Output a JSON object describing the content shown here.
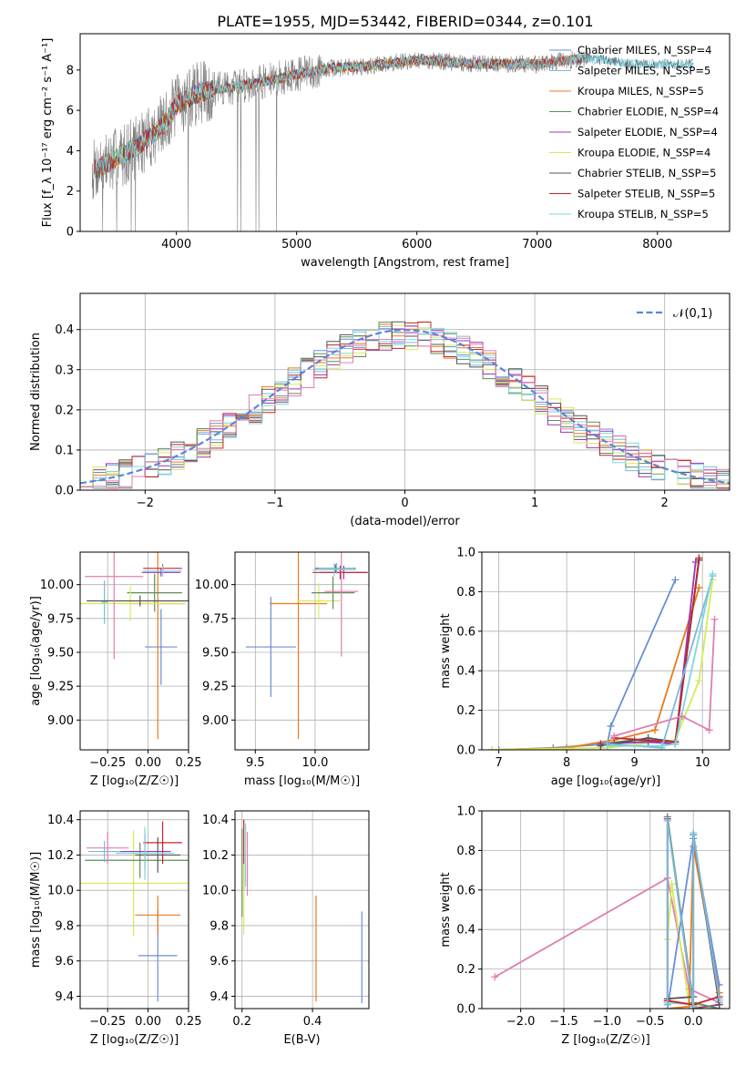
{
  "figure_title": "PLATE=1955, MJD=53442, FIBERID=0344, z=0.101",
  "colors": {
    "chabrier_miles": "#6a8fd6",
    "salpeter_miles": "#7fb8d8",
    "kroupa_miles": "#ea7a1d",
    "chabrier_elodie": "#5e8e57",
    "salpeter_elodie": "#9b35b5",
    "kroupa_elodie": "#d6ea5a",
    "chabrier_stelib": "#555555",
    "salpeter_stelib": "#c2262c",
    "kroupa_stelib": "#80d6de",
    "pink": "#e07fb0",
    "observed": "#808080",
    "gaussian": "#5b86d8",
    "grid": "#b0b0b0"
  },
  "chart_data": [
    {
      "id": "spectrum",
      "type": "line",
      "title": "PLATE=1955, MJD=53442, FIBERID=0344, z=0.101",
      "xlabel": "wavelength [Angstrom, rest frame]",
      "ylabel": "Flux [f_λ 10⁻¹⁷ erg cm⁻² s⁻¹ A⁻¹]",
      "xlim": [
        3200,
        8600
      ],
      "ylim": [
        0,
        9.8
      ],
      "xticks": [
        4000,
        5000,
        6000,
        7000,
        8000
      ],
      "yticks": [
        0,
        2,
        4,
        6,
        8
      ],
      "grid": false,
      "legend_position": "top-right",
      "legend": [
        "Chabrier MILES, N_SSP=4",
        "Salpeter MILES, N_SSP=5",
        "Kroupa MILES, N_SSP=5",
        "Chabrier ELODIE, N_SSP=4",
        "Salpeter ELODIE, N_SSP=4",
        "Kroupa ELODIE, N_SSP=4",
        "Chabrier STELIB, N_SSP=5",
        "Salpeter STELIB, N_SSP=5",
        "Kroupa STELIB, N_SSP=5"
      ],
      "continuum_x": [
        3300,
        3500,
        3700,
        3900,
        4000,
        4200,
        4500,
        4800,
        5000,
        5300,
        5600,
        6000,
        6500,
        7000,
        7400,
        7800,
        8300
      ],
      "continuum_y": [
        3.0,
        3.6,
        4.3,
        5.3,
        6.3,
        6.9,
        7.2,
        7.5,
        7.8,
        8.1,
        8.2,
        8.5,
        8.3,
        8.3,
        8.6,
        8.3,
        8.3
      ]
    },
    {
      "id": "residuals",
      "type": "histogram",
      "xlabel": "(data-model)/error",
      "ylabel": "Normed distribution",
      "xlim": [
        -2.5,
        2.5
      ],
      "ylim": [
        0,
        0.49
      ],
      "xticks": [
        -2,
        -1,
        0,
        1,
        2
      ],
      "yticks": [
        0.0,
        0.1,
        0.2,
        0.3,
        0.4
      ],
      "grid": true,
      "legend_position": "top-right",
      "legend": [
        "𝒩(0,1)"
      ],
      "bin_width": 0.1
    },
    {
      "id": "age_vs_z",
      "type": "errorbar",
      "xlabel": "Z [log₁₀(Z/Z☉)]",
      "ylabel": "age  [log₁₀(age/yr)]",
      "xlim": [
        -0.42,
        0.25
      ],
      "ylim": [
        8.78,
        10.24
      ],
      "xticks": [
        -0.25,
        0.0,
        0.25
      ],
      "yticks": [
        9.0,
        9.25,
        9.5,
        9.75,
        10.0
      ],
      "grid": true,
      "points": [
        {
          "c": "chabrier_miles",
          "x": 0.08,
          "xerr": 0.1,
          "y": 9.54,
          "yerr": 0.28
        },
        {
          "c": "salpeter_miles",
          "x": -0.27,
          "xerr": 0.02,
          "y": 9.87,
          "yerr": 0.16
        },
        {
          "c": "kroupa_miles",
          "x": 0.06,
          "xerr": 0.17,
          "y": 9.86,
          "yerr": 1.0
        },
        {
          "c": "chabrier_elodie",
          "x": 0.04,
          "xerr": 0.17,
          "y": 9.94,
          "yerr": 0.14
        },
        {
          "c": "salpeter_elodie",
          "x": 0.08,
          "xerr": 0.12,
          "y": 10.09,
          "yerr": 0.03
        },
        {
          "c": "kroupa_elodie",
          "x": -0.11,
          "xerr": 0.34,
          "y": 9.86,
          "yerr": 0.13
        },
        {
          "c": "chabrier_stelib",
          "x": -0.05,
          "xerr": 0.33,
          "y": 9.88,
          "yerr": 0.04
        },
        {
          "c": "salpeter_stelib",
          "x": 0.09,
          "xerr": 0.12,
          "y": 10.12,
          "yerr": 0.03
        },
        {
          "c": "kroupa_stelib",
          "x": 0.09,
          "xerr": 0.12,
          "y": 10.1,
          "yerr": 0.04
        },
        {
          "c": "pink",
          "x": -0.21,
          "xerr": 0.18,
          "y": 10.06,
          "yerr": 0.61
        }
      ]
    },
    {
      "id": "age_vs_mass",
      "type": "errorbar",
      "xlabel": "mass [log₁₀(M/M☉)]",
      "ylabel": "",
      "xlim": [
        9.33,
        10.45
      ],
      "ylim": [
        8.78,
        10.24
      ],
      "xticks": [
        9.5,
        10.0
      ],
      "yticks": [
        9.0,
        9.25,
        9.5,
        9.75,
        10.0
      ],
      "grid": true,
      "points": [
        {
          "c": "chabrier_miles",
          "x": 9.63,
          "xerr": 0.21,
          "y": 9.54,
          "yerr": 0.37
        },
        {
          "c": "kroupa_miles",
          "x": 9.86,
          "xerr": 0.24,
          "y": 9.86,
          "yerr": 1.0
        },
        {
          "c": "kroupa_elodie",
          "x": 10.03,
          "xerr": 0.18,
          "y": 9.88,
          "yerr": 0.13
        },
        {
          "c": "chabrier_elodie",
          "x": 10.15,
          "xerr": 0.18,
          "y": 9.94,
          "yerr": 0.12
        },
        {
          "c": "chabrier_stelib",
          "x": 10.17,
          "xerr": 0.17,
          "y": 10.12,
          "yerr": 0.03
        },
        {
          "c": "salpeter_elodie",
          "x": 10.24,
          "xerr": 0.2,
          "y": 10.09,
          "yerr": 0.05
        },
        {
          "c": "salpeter_stelib",
          "x": 10.21,
          "xerr": 0.23,
          "y": 10.09,
          "yerr": 0.05
        },
        {
          "c": "kroupa_stelib",
          "x": 10.16,
          "xerr": 0.18,
          "y": 10.11,
          "yerr": 0.05
        },
        {
          "c": "pink",
          "x": 10.22,
          "xerr": 0.14,
          "y": 9.95,
          "yerr": 0.48
        },
        {
          "c": "salpeter_miles",
          "x": 10.18,
          "xerr": 0.15,
          "y": 10.12,
          "yerr": 0.04
        }
      ]
    },
    {
      "id": "mass_weight_vs_age",
      "type": "line",
      "xlabel": "age  [log₁₀(age/yr)]",
      "ylabel": "mass weight",
      "xlim": [
        6.75,
        10.4
      ],
      "ylim": [
        0,
        1.0
      ],
      "xticks": [
        7,
        8,
        9,
        10
      ],
      "yticks": [
        0.0,
        0.2,
        0.4,
        0.6,
        0.8,
        1.0
      ],
      "grid": true,
      "series": [
        {
          "c": "chabrier_miles",
          "x": [
            7.0,
            7.8,
            8.6,
            8.65,
            9.6
          ],
          "y": [
            0.0,
            0.01,
            0.03,
            0.12,
            0.86
          ]
        },
        {
          "c": "kroupa_miles",
          "x": [
            6.9,
            8.0,
            8.7,
            9.3,
            9.95
          ],
          "y": [
            0.0,
            0.01,
            0.05,
            0.1,
            0.82
          ]
        },
        {
          "c": "kroupa_elodie",
          "x": [
            6.9,
            8.6,
            9.6,
            9.95,
            10.15
          ],
          "y": [
            0.0,
            0.01,
            0.05,
            0.35,
            0.86
          ]
        },
        {
          "c": "chabrier_elodie",
          "x": [
            8.5,
            9.0,
            9.6,
            9.95
          ],
          "y": [
            0.03,
            0.05,
            0.03,
            0.97
          ]
        },
        {
          "c": "salpeter_elodie",
          "x": [
            8.5,
            9.2,
            9.6,
            9.9
          ],
          "y": [
            0.03,
            0.04,
            0.03,
            0.95
          ]
        },
        {
          "c": "chabrier_stelib",
          "x": [
            8.5,
            9.2,
            9.6,
            9.95
          ],
          "y": [
            0.02,
            0.06,
            0.04,
            0.96
          ]
        },
        {
          "c": "salpeter_stelib",
          "x": [
            8.7,
            9.6,
            9.95
          ],
          "y": [
            0.06,
            0.04,
            0.97
          ]
        },
        {
          "c": "salpeter_miles",
          "x": [
            8.6,
            9.4,
            10.15
          ],
          "y": [
            0.03,
            0.01,
            0.88
          ]
        },
        {
          "c": "kroupa_stelib",
          "x": [
            8.6,
            9.4,
            9.6,
            10.15
          ],
          "y": [
            0.02,
            0.02,
            0.03,
            0.89
          ]
        },
        {
          "c": "pink",
          "x": [
            8.7,
            9.7,
            10.1,
            10.18
          ],
          "y": [
            0.07,
            0.17,
            0.1,
            0.66
          ]
        }
      ]
    },
    {
      "id": "mass_vs_z",
      "type": "errorbar",
      "xlabel": "Z [log₁₀(Z/Z☉)]",
      "ylabel": "mass [log₁₀(M/M☉)]",
      "xlim": [
        -0.42,
        0.25
      ],
      "ylim": [
        9.33,
        10.45
      ],
      "xticks": [
        -0.25,
        0.0,
        0.25
      ],
      "yticks": [
        9.4,
        9.6,
        9.8,
        10.0,
        10.2,
        10.4
      ],
      "grid": true,
      "points": [
        {
          "c": "chabrier_miles",
          "x": 0.06,
          "xerr": 0.12,
          "y": 9.63,
          "yerr": 0.26
        },
        {
          "c": "kroupa_miles",
          "x": 0.06,
          "xerr": 0.14,
          "y": 9.86,
          "yerr": 0.11
        },
        {
          "c": "kroupa_elodie",
          "x": -0.09,
          "xerr": 0.34,
          "y": 10.04,
          "yerr": 0.3
        },
        {
          "c": "chabrier_elodie",
          "x": -0.05,
          "xerr": 0.34,
          "y": 10.17,
          "yerr": 0.1
        },
        {
          "c": "salpeter_elodie",
          "x": -0.02,
          "xerr": 0.16,
          "y": 10.22,
          "yerr": 0.1
        },
        {
          "c": "chabrier_stelib",
          "x": 0.06,
          "xerr": 0.14,
          "y": 10.2,
          "yerr": 0.1
        },
        {
          "c": "salpeter_stelib",
          "x": 0.09,
          "xerr": 0.12,
          "y": 10.27,
          "yerr": 0.12
        },
        {
          "c": "kroupa_stelib",
          "x": -0.02,
          "xerr": 0.18,
          "y": 10.21,
          "yerr": 0.15
        },
        {
          "c": "pink",
          "x": -0.25,
          "xerr": 0.13,
          "y": 10.24,
          "yerr": 0.09
        },
        {
          "c": "salpeter_miles",
          "x": -0.27,
          "xerr": 0.1,
          "y": 10.22,
          "yerr": 0.06
        }
      ]
    },
    {
      "id": "mass_vs_ebv",
      "type": "errorbar",
      "xlabel": "E(B-V)",
      "ylabel": "",
      "xlim": [
        0.18,
        0.56
      ],
      "ylim": [
        9.33,
        10.45
      ],
      "xticks": [
        0.2,
        0.4
      ],
      "yticks": [
        9.4,
        9.6,
        9.8,
        10.0,
        10.2,
        10.4
      ],
      "grid": true,
      "points": [
        {
          "c": "chabrier_miles",
          "x": 0.54,
          "y": 9.62,
          "yerr": 0.26
        },
        {
          "c": "kroupa_miles",
          "x": 0.41,
          "y": 9.67,
          "yerr": 0.3
        },
        {
          "c": "pink",
          "x": 0.215,
          "y": 10.15,
          "yerr": 0.18
        },
        {
          "c": "salpeter_stelib",
          "x": 0.205,
          "y": 10.2,
          "yerr": 0.2
        },
        {
          "c": "kroupa_elodie",
          "x": 0.205,
          "y": 9.95,
          "yerr": 0.2
        },
        {
          "c": "chabrier_elodie",
          "x": 0.2,
          "y": 10.1,
          "yerr": 0.25
        },
        {
          "c": "kroupa_stelib",
          "x": 0.21,
          "y": 10.2,
          "yerr": 0.18
        }
      ]
    },
    {
      "id": "mass_weight_vs_z",
      "type": "line",
      "xlabel": "Z [log₁₀(Z/Z☉)]",
      "ylabel": "mass weight",
      "xlim": [
        -2.45,
        0.42
      ],
      "ylim": [
        0,
        1.0
      ],
      "xticks": [
        -2.0,
        -1.5,
        -1.0,
        -0.5,
        0.0
      ],
      "yticks": [
        0.0,
        0.2,
        0.4,
        0.6,
        0.8,
        1.0
      ],
      "grid": true,
      "series": [
        {
          "c": "pink",
          "x": [
            -2.3,
            -0.3,
            -0.05,
            0.3
          ],
          "y": [
            0.16,
            0.66,
            0.1,
            0.03
          ]
        },
        {
          "c": "kroupa_elodie",
          "x": [
            -0.3,
            -0.25,
            -0.05,
            0.3
          ],
          "y": [
            0.35,
            0.63,
            0.02,
            0.0
          ]
        },
        {
          "c": "salpeter_elodie",
          "x": [
            -0.3,
            -0.3,
            0.0,
            0.3
          ],
          "y": [
            0.03,
            0.96,
            0.0,
            0.02
          ]
        },
        {
          "c": "chabrier_elodie",
          "x": [
            -0.3,
            -0.3,
            0.0,
            0.3
          ],
          "y": [
            0.02,
            0.97,
            0.03,
            0.0
          ]
        },
        {
          "c": "kroupa_miles",
          "x": [
            -0.3,
            -0.05,
            0.0,
            0.3
          ],
          "y": [
            0.0,
            0.01,
            0.82,
            0.08
          ]
        },
        {
          "c": "chabrier_miles",
          "x": [
            -0.3,
            0.0,
            0.3
          ],
          "y": [
            0.0,
            0.86,
            0.12
          ]
        },
        {
          "c": "kroupa_stelib",
          "x": [
            -0.3,
            0.0,
            0.0,
            0.3
          ],
          "y": [
            0.03,
            0.02,
            0.89,
            0.04
          ]
        },
        {
          "c": "chabrier_stelib",
          "x": [
            -0.3,
            0.0,
            0.0,
            0.3
          ],
          "y": [
            0.05,
            0.06,
            0.88,
            0.02
          ]
        },
        {
          "c": "salpeter_stelib",
          "x": [
            -0.3,
            0.0,
            0.3
          ],
          "y": [
            0.04,
            0.02,
            0.06
          ]
        },
        {
          "c": "salpeter_miles",
          "x": [
            -0.3,
            -0.3,
            0.0,
            0.0,
            0.3
          ],
          "y": [
            0.02,
            0.95,
            0.01,
            0.88,
            0.05
          ]
        }
      ]
    }
  ]
}
